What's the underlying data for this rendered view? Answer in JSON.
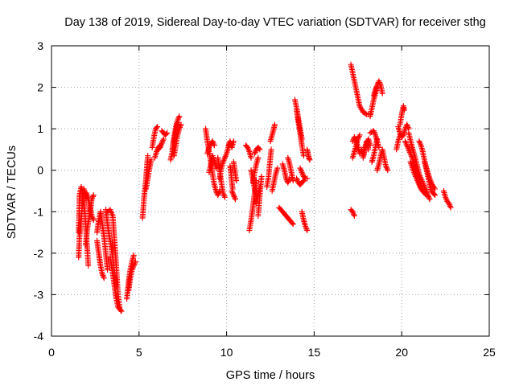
{
  "chart_data": {
    "type": "scatter",
    "title": "Day 138 of 2019, Sidereal Day-to-day VTEC variation (SDTVAR) for receiver sthg",
    "xlabel": "GPS time / hours",
    "ylabel": "SDTVAR / TECUs",
    "xlim": [
      0,
      25
    ],
    "ylim": [
      -4,
      3
    ],
    "xticks": [
      0,
      5,
      10,
      15,
      20,
      25
    ],
    "yticks": [
      -4,
      -3,
      -2,
      -1,
      0,
      1,
      2,
      3
    ],
    "grid": true,
    "marker": "plus",
    "colors": {
      "series": "#ff0000",
      "grid": "#a0a0a0",
      "axis": "#000000"
    },
    "tracks": [
      [
        [
          1.55,
          -1.5
        ],
        [
          1.6,
          -0.6
        ],
        [
          1.7,
          -0.4
        ],
        [
          1.8,
          -0.6
        ],
        [
          1.9,
          -1.0
        ],
        [
          2.0,
          -1.6
        ],
        [
          2.1,
          -2.3
        ]
      ],
      [
        [
          1.55,
          -2.1
        ],
        [
          1.6,
          -1.6
        ],
        [
          1.7,
          -1.2
        ],
        [
          1.75,
          -0.85
        ],
        [
          1.85,
          -0.45
        ],
        [
          2.0,
          -0.65
        ]
      ],
      [
        [
          2.0,
          -0.55
        ],
        [
          2.1,
          -0.7
        ],
        [
          2.2,
          -0.9
        ],
        [
          2.3,
          -1.1
        ],
        [
          2.4,
          -1.2
        ]
      ],
      [
        [
          1.95,
          -1.8
        ],
        [
          2.05,
          -1.4
        ],
        [
          2.2,
          -1.0
        ],
        [
          2.3,
          -0.7
        ],
        [
          2.4,
          -0.6
        ]
      ],
      [
        [
          2.6,
          -1.5
        ],
        [
          2.7,
          -1.2
        ],
        [
          2.8,
          -1.0
        ],
        [
          2.9,
          -1.3
        ],
        [
          3.0,
          -1.6
        ],
        [
          3.1,
          -2.0
        ],
        [
          3.2,
          -2.4
        ]
      ],
      [
        [
          2.6,
          -1.7
        ],
        [
          2.7,
          -2.0
        ],
        [
          2.8,
          -2.3
        ],
        [
          2.9,
          -2.5
        ],
        [
          3.0,
          -2.6
        ]
      ],
      [
        [
          3.1,
          -0.95
        ],
        [
          3.2,
          -1.3
        ],
        [
          3.3,
          -1.6
        ],
        [
          3.4,
          -1.8
        ],
        [
          3.5,
          -2.1
        ],
        [
          3.6,
          -2.5
        ],
        [
          3.7,
          -2.8
        ]
      ],
      [
        [
          3.2,
          -1.0
        ],
        [
          3.35,
          -0.95
        ],
        [
          3.5,
          -1.1
        ],
        [
          3.6,
          -1.7
        ],
        [
          3.7,
          -2.3
        ],
        [
          3.8,
          -3.0
        ],
        [
          3.9,
          -3.35
        ]
      ],
      [
        [
          3.35,
          -2.1
        ],
        [
          3.5,
          -2.5
        ],
        [
          3.6,
          -2.8
        ],
        [
          3.7,
          -3.1
        ],
        [
          3.8,
          -3.3
        ],
        [
          4.0,
          -3.4
        ]
      ],
      [
        [
          4.3,
          -3.1
        ],
        [
          4.4,
          -2.7
        ],
        [
          4.5,
          -2.4
        ],
        [
          4.6,
          -2.2
        ],
        [
          4.7,
          -2.05
        ]
      ],
      [
        [
          4.4,
          -2.9
        ],
        [
          4.5,
          -2.6
        ],
        [
          4.6,
          -2.4
        ],
        [
          4.7,
          -2.3
        ],
        [
          4.8,
          -2.2
        ]
      ],
      [
        [
          5.2,
          -1.15
        ],
        [
          5.3,
          -0.6
        ],
        [
          5.4,
          -0.2
        ],
        [
          5.45,
          0.1
        ],
        [
          5.5,
          0.35
        ]
      ],
      [
        [
          5.4,
          -0.45
        ],
        [
          5.5,
          -0.2
        ],
        [
          5.6,
          0.05
        ],
        [
          5.7,
          0.25
        ]
      ],
      [
        [
          5.75,
          0.55
        ],
        [
          5.85,
          0.8
        ],
        [
          5.95,
          1.0
        ],
        [
          6.05,
          1.05
        ]
      ],
      [
        [
          5.9,
          0.3
        ],
        [
          6.0,
          0.45
        ],
        [
          6.1,
          0.55
        ],
        [
          6.2,
          0.6
        ]
      ],
      [
        [
          6.1,
          0.5
        ],
        [
          6.2,
          0.55
        ],
        [
          6.3,
          0.65
        ],
        [
          6.4,
          0.75
        ]
      ],
      [
        [
          6.3,
          0.95
        ],
        [
          6.4,
          0.9
        ],
        [
          6.5,
          0.85
        ],
        [
          6.6,
          0.9
        ]
      ],
      [
        [
          6.8,
          0.25
        ],
        [
          6.9,
          0.45
        ],
        [
          7.0,
          0.7
        ],
        [
          7.1,
          0.95
        ],
        [
          7.2,
          1.15
        ]
      ],
      [
        [
          6.9,
          0.5
        ],
        [
          7.0,
          0.8
        ],
        [
          7.1,
          1.05
        ],
        [
          7.2,
          1.2
        ],
        [
          7.3,
          1.3
        ]
      ],
      [
        [
          7.0,
          0.35
        ],
        [
          7.1,
          0.6
        ],
        [
          7.2,
          0.85
        ],
        [
          7.3,
          1.0
        ],
        [
          7.4,
          1.1
        ]
      ],
      [
        [
          8.8,
          1.0
        ],
        [
          8.9,
          0.7
        ],
        [
          9.0,
          0.45
        ],
        [
          9.1,
          0.2
        ],
        [
          9.2,
          -0.1
        ],
        [
          9.3,
          -0.35
        ],
        [
          9.4,
          -0.5
        ],
        [
          9.5,
          -0.6
        ],
        [
          9.6,
          -0.5
        ]
      ],
      [
        [
          8.9,
          0.4
        ],
        [
          9.0,
          0.55
        ],
        [
          9.1,
          0.65
        ],
        [
          9.2,
          0.7
        ],
        [
          9.3,
          0.6
        ]
      ],
      [
        [
          9.0,
          -0.05
        ],
        [
          9.1,
          0.15
        ],
        [
          9.2,
          0.35
        ],
        [
          9.3,
          0.2
        ],
        [
          9.4,
          0.05
        ]
      ],
      [
        [
          9.5,
          0.3
        ],
        [
          9.6,
          0.0
        ],
        [
          9.7,
          -0.3
        ],
        [
          9.8,
          -0.55
        ],
        [
          9.9,
          -0.65
        ]
      ],
      [
        [
          9.6,
          -0.2
        ],
        [
          9.7,
          0.05
        ],
        [
          9.8,
          0.2
        ],
        [
          9.9,
          0.3
        ],
        [
          10.0,
          0.4
        ],
        [
          10.1,
          0.55
        ],
        [
          10.2,
          0.65
        ]
      ],
      [
        [
          10.1,
          0.6
        ],
        [
          10.2,
          0.7
        ],
        [
          10.3,
          0.55
        ],
        [
          10.4,
          0.7
        ]
      ],
      [
        [
          10.2,
          0.1
        ],
        [
          10.25,
          -0.05
        ],
        [
          10.3,
          -0.3
        ],
        [
          10.35,
          -0.45
        ]
      ],
      [
        [
          10.4,
          0.2
        ],
        [
          10.45,
          0.05
        ],
        [
          10.5,
          -0.1
        ],
        [
          10.55,
          -0.25
        ]
      ],
      [
        [
          10.3,
          -0.5
        ],
        [
          10.4,
          -0.6
        ],
        [
          10.5,
          -0.7
        ]
      ],
      [
        [
          11.1,
          0.6
        ],
        [
          11.2,
          0.55
        ],
        [
          11.3,
          0.45
        ],
        [
          11.4,
          0.3
        ]
      ],
      [
        [
          11.3,
          -1.45
        ],
        [
          11.4,
          -1.2
        ],
        [
          11.5,
          -0.9
        ],
        [
          11.6,
          -0.55
        ],
        [
          11.7,
          -0.25
        ]
      ],
      [
        [
          11.4,
          0.0
        ],
        [
          11.5,
          -0.2
        ],
        [
          11.6,
          -0.45
        ],
        [
          11.7,
          -0.6
        ]
      ],
      [
        [
          11.5,
          -0.3
        ],
        [
          11.6,
          -0.05
        ],
        [
          11.7,
          0.15
        ],
        [
          11.8,
          0.3
        ]
      ],
      [
        [
          11.6,
          0.4
        ],
        [
          11.7,
          0.5
        ],
        [
          11.8,
          0.55
        ],
        [
          11.9,
          0.5
        ]
      ],
      [
        [
          11.8,
          -1.1
        ],
        [
          11.85,
          -0.85
        ],
        [
          11.9,
          -0.6
        ],
        [
          11.95,
          -0.35
        ],
        [
          12.0,
          -0.15
        ]
      ],
      [
        [
          11.7,
          -0.8
        ],
        [
          11.8,
          -0.6
        ],
        [
          11.9,
          -0.4
        ]
      ],
      [
        [
          12.3,
          -0.4
        ],
        [
          12.4,
          -0.15
        ],
        [
          12.45,
          0.1
        ],
        [
          12.5,
          0.3
        ],
        [
          12.55,
          0.5
        ]
      ],
      [
        [
          12.5,
          0.7
        ],
        [
          12.6,
          0.85
        ],
        [
          12.7,
          1.0
        ],
        [
          12.75,
          1.1
        ]
      ],
      [
        [
          12.6,
          -0.5
        ],
        [
          12.7,
          -0.3
        ],
        [
          12.8,
          -0.1
        ],
        [
          12.9,
          0.05
        ]
      ],
      [
        [
          13.0,
          -0.9
        ],
        [
          13.2,
          -1.0
        ],
        [
          13.4,
          -1.1
        ],
        [
          13.6,
          -1.2
        ],
        [
          13.8,
          -1.3
        ]
      ],
      [
        [
          13.2,
          0.15
        ],
        [
          13.3,
          0.0
        ],
        [
          13.4,
          -0.2
        ],
        [
          13.5,
          -0.3
        ],
        [
          13.6,
          -0.2
        ]
      ],
      [
        [
          13.5,
          0.3
        ],
        [
          13.6,
          0.15
        ],
        [
          13.7,
          -0.05
        ],
        [
          13.8,
          -0.25
        ]
      ],
      [
        [
          13.9,
          1.7
        ],
        [
          14.0,
          1.5
        ],
        [
          14.1,
          1.25
        ],
        [
          14.2,
          1.0
        ],
        [
          14.3,
          0.75
        ]
      ],
      [
        [
          14.0,
          1.45
        ],
        [
          14.1,
          1.15
        ],
        [
          14.2,
          0.9
        ],
        [
          14.3,
          0.6
        ],
        [
          14.4,
          0.35
        ]
      ],
      [
        [
          14.0,
          -0.2
        ],
        [
          14.1,
          -0.3
        ],
        [
          14.2,
          -0.35
        ],
        [
          14.3,
          -0.3
        ],
        [
          14.4,
          -0.25
        ]
      ],
      [
        [
          14.3,
          -1.0
        ],
        [
          14.4,
          -1.2
        ],
        [
          14.5,
          -1.35
        ],
        [
          14.6,
          -1.45
        ]
      ],
      [
        [
          14.6,
          0.5
        ],
        [
          14.65,
          0.4
        ],
        [
          14.7,
          0.3
        ],
        [
          14.75,
          0.25
        ]
      ],
      [
        [
          14.2,
          0.05
        ],
        [
          14.3,
          -0.05
        ],
        [
          14.4,
          -0.15
        ],
        [
          14.5,
          -0.2
        ],
        [
          14.6,
          -0.2
        ]
      ],
      [
        [
          17.1,
          2.55
        ],
        [
          17.2,
          2.35
        ],
        [
          17.3,
          2.15
        ],
        [
          17.4,
          1.95
        ],
        [
          17.5,
          1.75
        ],
        [
          17.6,
          1.55
        ],
        [
          17.8,
          1.4
        ],
        [
          18.0,
          1.35
        ],
        [
          18.2,
          1.35
        ]
      ],
      [
        [
          17.1,
          -0.95
        ],
        [
          17.2,
          -1.0
        ],
        [
          17.3,
          -1.1
        ]
      ],
      [
        [
          17.2,
          0.3
        ],
        [
          17.3,
          0.45
        ],
        [
          17.4,
          0.6
        ],
        [
          17.5,
          0.75
        ],
        [
          17.6,
          0.85
        ]
      ],
      [
        [
          17.2,
          0.7
        ],
        [
          17.3,
          0.8
        ],
        [
          17.4,
          0.7
        ],
        [
          17.5,
          0.55
        ],
        [
          17.6,
          0.4
        ]
      ],
      [
        [
          17.7,
          0.5
        ],
        [
          17.8,
          0.35
        ],
        [
          17.9,
          0.55
        ],
        [
          18.0,
          0.7
        ],
        [
          18.1,
          0.5
        ]
      ],
      [
        [
          17.8,
          0.3
        ],
        [
          17.9,
          0.5
        ],
        [
          18.0,
          0.65
        ],
        [
          18.1,
          0.75
        ],
        [
          18.2,
          0.6
        ]
      ],
      [
        [
          18.2,
          0.9
        ],
        [
          18.4,
          0.95
        ],
        [
          18.5,
          0.85
        ],
        [
          18.6,
          0.7
        ],
        [
          18.7,
          0.55
        ]
      ],
      [
        [
          18.2,
          1.3
        ],
        [
          18.3,
          1.5
        ],
        [
          18.4,
          1.7
        ],
        [
          18.5,
          1.85
        ],
        [
          18.6,
          2.0
        ]
      ],
      [
        [
          18.4,
          1.8
        ],
        [
          18.5,
          1.95
        ],
        [
          18.6,
          2.05
        ],
        [
          18.7,
          2.15
        ],
        [
          18.8,
          2.05
        ],
        [
          18.9,
          1.85
        ]
      ],
      [
        [
          18.3,
          0.2
        ],
        [
          18.4,
          0.35
        ],
        [
          18.5,
          0.55
        ],
        [
          18.6,
          0.75
        ]
      ],
      [
        [
          18.6,
          0.0
        ],
        [
          18.7,
          0.15
        ],
        [
          18.8,
          0.35
        ],
        [
          18.9,
          0.5
        ],
        [
          19.0,
          0.3
        ],
        [
          19.1,
          0.1
        ],
        [
          19.2,
          0.0
        ]
      ],
      [
        [
          19.9,
          1.1
        ],
        [
          20.0,
          1.35
        ],
        [
          20.1,
          1.55
        ],
        [
          20.15,
          1.45
        ]
      ],
      [
        [
          19.8,
          1.05
        ],
        [
          19.9,
          0.9
        ],
        [
          20.0,
          0.8
        ],
        [
          20.1,
          0.85
        ],
        [
          20.2,
          1.0
        ],
        [
          20.3,
          1.1
        ],
        [
          20.4,
          1.0
        ]
      ],
      [
        [
          19.7,
          0.5
        ],
        [
          19.8,
          0.7
        ],
        [
          19.9,
          0.85
        ]
      ],
      [
        [
          20.2,
          0.7
        ],
        [
          20.4,
          0.5
        ],
        [
          20.6,
          0.3
        ],
        [
          20.8,
          0.0
        ],
        [
          21.0,
          -0.3
        ],
        [
          21.2,
          -0.5
        ],
        [
          21.4,
          -0.6
        ]
      ],
      [
        [
          20.4,
          0.9
        ],
        [
          20.6,
          0.55
        ],
        [
          20.8,
          0.25
        ],
        [
          21.0,
          -0.1
        ],
        [
          21.2,
          -0.3
        ],
        [
          21.4,
          -0.5
        ],
        [
          21.6,
          -0.7
        ]
      ],
      [
        [
          20.5,
          0.2
        ],
        [
          20.7,
          -0.05
        ],
        [
          20.9,
          -0.25
        ],
        [
          21.1,
          -0.45
        ],
        [
          21.3,
          -0.55
        ]
      ],
      [
        [
          21.0,
          0.7
        ],
        [
          21.1,
          0.6
        ],
        [
          21.2,
          0.45
        ],
        [
          21.3,
          0.25
        ],
        [
          21.4,
          0.05
        ],
        [
          21.5,
          -0.15
        ],
        [
          21.6,
          -0.35
        ],
        [
          21.7,
          -0.5
        ],
        [
          21.8,
          -0.55
        ],
        [
          21.9,
          -0.6
        ]
      ],
      [
        [
          21.3,
          0.2
        ],
        [
          21.45,
          0.0
        ],
        [
          21.6,
          -0.2
        ],
        [
          21.75,
          -0.35
        ],
        [
          21.9,
          -0.45
        ]
      ],
      [
        [
          22.4,
          -0.5
        ],
        [
          22.5,
          -0.65
        ],
        [
          22.6,
          -0.75
        ],
        [
          22.7,
          -0.8
        ],
        [
          22.8,
          -0.9
        ]
      ]
    ]
  }
}
